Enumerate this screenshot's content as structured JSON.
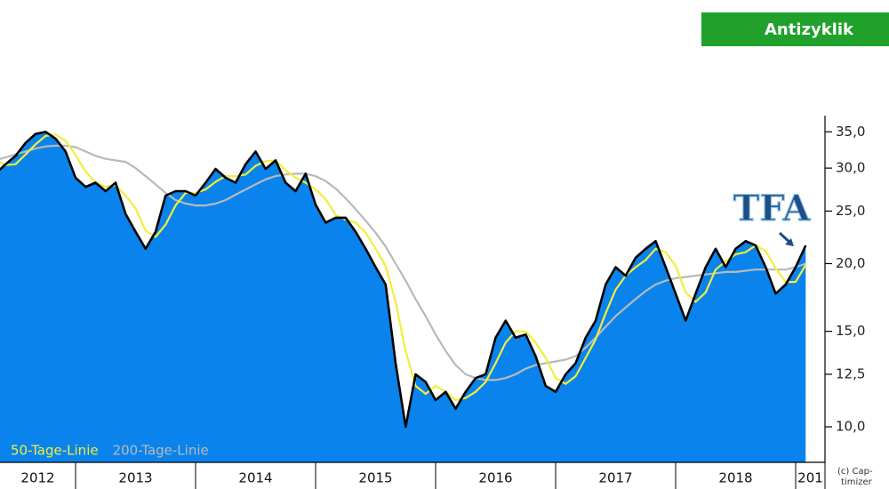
{
  "chart_data": {
    "type": "line",
    "button": "Antizyklik",
    "logo": "TFA",
    "credit": [
      "(c) Cap-",
      "timizer"
    ],
    "yscale": "log",
    "ylim": [
      8.6,
      37.5
    ],
    "yticks": [
      {
        "value": 10,
        "label": "10,0"
      },
      {
        "value": 12.5,
        "label": "12,5"
      },
      {
        "value": 15,
        "label": "15,0"
      },
      {
        "value": 20,
        "label": "20,0"
      },
      {
        "value": 25,
        "label": "25,0"
      },
      {
        "value": 30,
        "label": "30,0"
      },
      {
        "value": 35,
        "label": "35,0"
      }
    ],
    "legend": "bottom-left",
    "categories": [
      "2012",
      null,
      null,
      null,
      null,
      null,
      null,
      null,
      "2013",
      null,
      null,
      null,
      null,
      null,
      null,
      null,
      null,
      null,
      null,
      null,
      "2014",
      null,
      null,
      null,
      null,
      null,
      null,
      null,
      null,
      null,
      null,
      null,
      "2015",
      null,
      null,
      null,
      null,
      null,
      null,
      null,
      null,
      null,
      null,
      null,
      "2016",
      null,
      null,
      null,
      null,
      null,
      null,
      null,
      null,
      null,
      null,
      null,
      "2017",
      null,
      null,
      null,
      null,
      null,
      null,
      null,
      null,
      null,
      null,
      null,
      "2018",
      null,
      null,
      null,
      null,
      null,
      null,
      null,
      null,
      null,
      null,
      null,
      "201",
      null
    ],
    "series": [
      {
        "color": "#000000",
        "fill": "#0a84ec",
        "values": [
          29.3,
          30.5,
          31.6,
          33.4,
          34.7,
          35,
          34,
          32.2,
          28.8,
          27.7,
          28.2,
          27.2,
          28.2,
          24.7,
          22.9,
          21.3,
          22.9,
          26.7,
          27.2,
          27.2,
          26.7,
          28.2,
          29.9,
          28.8,
          28.2,
          30.5,
          32.2,
          29.9,
          31,
          28.2,
          27.2,
          29.3,
          25.7,
          23.8,
          24.3,
          24.3,
          22.9,
          21.3,
          19.7,
          18.3,
          13.1,
          10,
          12.5,
          12.1,
          11.2,
          11.6,
          10.8,
          11.6,
          12.3,
          12.5,
          14.6,
          15.7,
          14.6,
          14.8,
          13.5,
          11.9,
          11.6,
          12.5,
          13.1,
          14.6,
          15.7,
          18.3,
          19.7,
          19,
          20.5,
          21.3,
          22,
          19.7,
          17.6,
          15.7,
          17.6,
          19.7,
          21.3,
          19.7,
          21.3,
          22,
          21.6,
          19.7,
          17.6,
          18.3,
          19.7,
          21.6
        ]
      },
      {
        "name": "50-Tage-Linie",
        "color": "#f2ee3a",
        "values": [
          31,
          30.4,
          30.5,
          31.8,
          33.2,
          34.4,
          34.6,
          33.7,
          31.7,
          29.6,
          28.2,
          27.7,
          27.9,
          26.7,
          25.3,
          23,
          22.4,
          23.6,
          25.6,
          27,
          27,
          27.4,
          28.3,
          29,
          29,
          29.2,
          30.3,
          30.9,
          31,
          29.7,
          28.8,
          28.2,
          27.4,
          26.3,
          24.6,
          24.1,
          23.8,
          22.8,
          21.3,
          19.8,
          17,
          13.8,
          11.9,
          11.5,
          11.9,
          11.6,
          11.2,
          11.3,
          11.6,
          12.1,
          13.1,
          14.3,
          15,
          15,
          14.3,
          13.4,
          12.3,
          12,
          12.4,
          13.4,
          14.5,
          16.2,
          17.9,
          19,
          19.7,
          20.3,
          21.3,
          21,
          19.8,
          17.7,
          17,
          17.7,
          19.5,
          20.2,
          20.8,
          21,
          21.6,
          21.1,
          19.6,
          18.5,
          18.5,
          19.9
        ]
      },
      {
        "name": "200-Tage-Linie",
        "color": "#b9b9b9",
        "values": [
          31,
          31.4,
          31.8,
          32.2,
          32.6,
          32.9,
          33,
          33,
          32.8,
          32.2,
          31.6,
          31.2,
          31,
          30.8,
          30,
          29,
          28,
          27,
          26.2,
          25.8,
          25.6,
          25.6,
          25.8,
          26.2,
          26.8,
          27.4,
          28,
          28.6,
          29,
          29.2,
          29.3,
          29.3,
          29,
          28.4,
          27.5,
          26.4,
          25.2,
          24,
          22.8,
          21.5,
          20,
          18.6,
          17.2,
          16,
          14.8,
          13.8,
          13,
          12.5,
          12.3,
          12.2,
          12.2,
          12.3,
          12.5,
          12.8,
          13,
          13.1,
          13.2,
          13.3,
          13.5,
          14,
          14.6,
          15.3,
          16,
          16.6,
          17.2,
          17.8,
          18.3,
          18.6,
          18.8,
          18.9,
          19,
          19.1,
          19.2,
          19.3,
          19.3,
          19.4,
          19.5,
          19.5,
          19.5,
          19.5,
          19.7,
          20
        ]
      }
    ]
  }
}
